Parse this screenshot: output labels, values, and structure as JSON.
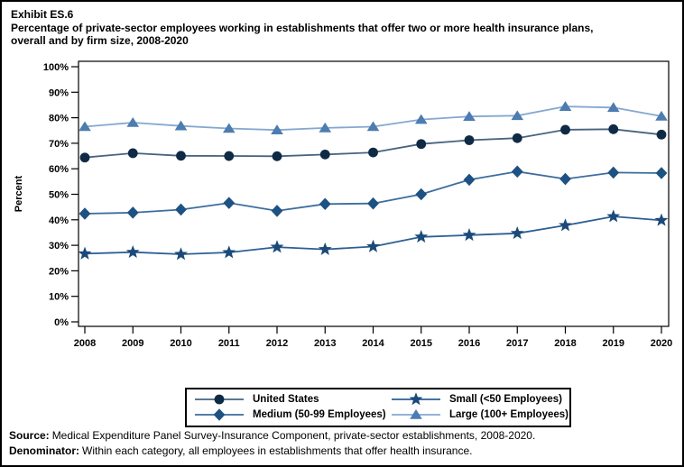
{
  "exhibit": {
    "number": "Exhibit ES.6",
    "title_lines": [
      "Percentage of private-sector employees working in establishments that offer two or more health insurance plans,",
      "overall and by firm size, 2008-2020"
    ]
  },
  "chart_data": {
    "type": "line",
    "title": "Percentage of private-sector employees working in establishments that offer two or more health insurance plans, overall and by firm size, 2008-2020",
    "x": [
      2008,
      2009,
      2010,
      2011,
      2012,
      2013,
      2014,
      2015,
      2016,
      2017,
      2018,
      2019,
      2020
    ],
    "xlabel": "",
    "ylabel": "Percent",
    "ylim": [
      0,
      100
    ],
    "ytick_step": 10,
    "ytick_suffix": "%",
    "grid": false,
    "legend_position": "bottom-center-box",
    "series": [
      {
        "name": "United States",
        "marker": "circle",
        "line_color": "#46637f",
        "marker_color": "#0f2a44",
        "values": [
          64.4,
          66.1,
          65.1,
          65.0,
          64.9,
          65.6,
          66.4,
          69.7,
          71.2,
          72.0,
          75.3,
          75.5,
          73.4
        ]
      },
      {
        "name": "Small (<50 Employees)",
        "marker": "star",
        "line_color": "#2d5f93",
        "marker_color": "#1b4a7a",
        "values": [
          26.7,
          27.3,
          26.5,
          27.2,
          29.3,
          28.4,
          29.5,
          33.3,
          34.0,
          34.7,
          37.8,
          41.3,
          39.8
        ]
      },
      {
        "name": "Medium (50-99 Employees)",
        "marker": "diamond",
        "line_color": "#3c6d9e",
        "marker_color": "#1d5282",
        "values": [
          42.4,
          42.8,
          44.0,
          46.6,
          43.5,
          46.2,
          46.4,
          50.0,
          55.7,
          58.9,
          56.0,
          58.5,
          58.3
        ]
      },
      {
        "name": "Large (100+ Employees)",
        "marker": "triangle",
        "line_color": "#85a8cf",
        "marker_color": "#4d7cb0",
        "values": [
          76.5,
          78.1,
          76.8,
          75.8,
          75.2,
          76.0,
          76.5,
          79.3,
          80.5,
          80.8,
          84.4,
          84.0,
          80.6
        ]
      }
    ]
  },
  "footer": {
    "source_label": "Source:",
    "source_text": "Medical Expenditure Panel Survey-Insurance Component, private-sector establishments, 2008-2020.",
    "denominator_label": "Denominator:",
    "denominator_text": "Within each category, all employees in establishments that offer health insurance."
  }
}
